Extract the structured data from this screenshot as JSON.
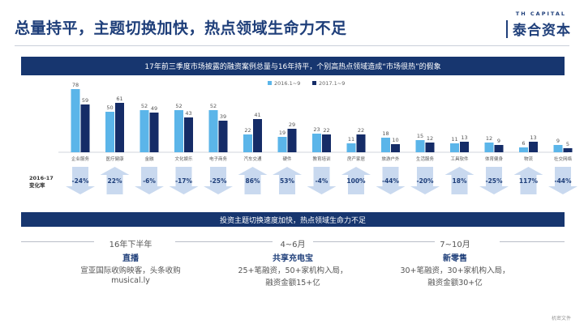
{
  "header": {
    "title": "总量持平，主题切换加快，热点领域生命力不足",
    "logo_small": "TH CAPITAL",
    "logo_main": "泰合资本"
  },
  "banner_top": "17年前三季度市场披露的融资案例总量与16年持平，个别高热点领域造成“市场很热”的假象",
  "banner_mid": "投资主题切换速度加快，热点领域生命力不足",
  "chart_data": {
    "type": "bar",
    "categories": [
      "企业服务",
      "医疗健康",
      "金融",
      "文化娱乐",
      "电子商务",
      "汽车交通",
      "硬件",
      "教育培训",
      "房产家居",
      "旅游户外",
      "生活服务",
      "工具软件",
      "体育健身",
      "物流",
      "社交网络"
    ],
    "series": [
      {
        "name": "2016.1~9",
        "values": [
          78,
          50,
          52,
          52,
          52,
          22,
          19,
          23,
          11,
          18,
          15,
          11,
          12,
          6,
          9
        ]
      },
      {
        "name": "2017.1~9",
        "values": [
          59,
          61,
          49,
          43,
          39,
          41,
          29,
          22,
          22,
          10,
          12,
          13,
          9,
          13,
          5
        ]
      }
    ],
    "change_label": "2016-17 变化率",
    "change_rates": [
      "-24%",
      "22%",
      "-6%",
      "-17%",
      "-25%",
      "86%",
      "53%",
      "-4%",
      "100%",
      "-44%",
      "-20%",
      "18%",
      "-25%",
      "117%",
      "-44%"
    ],
    "ylim": [
      0,
      90
    ],
    "legend_position": "top-right",
    "grid": false,
    "colors": {
      "series_2016": "#5bb5e9",
      "series_2017": "#152c67",
      "arrow": "#c9d9ef",
      "rate_text": "#1f3f7a"
    }
  },
  "timeline": [
    {
      "period": "16年下半年",
      "title": "直播",
      "lines": [
        "宣亚国际收购映客，头条收购",
        "musical.ly"
      ]
    },
    {
      "period": "4~6月",
      "title": "共享充电宝",
      "lines": [
        "25+笔融资，50+家机构入局，",
        "融资金额15+亿"
      ]
    },
    {
      "period": "7~10月",
      "title": "新零售",
      "lines": [
        "30+笔融资，30+家机构入局，",
        "融资金额30+亿"
      ]
    }
  ],
  "footer": "机密文件"
}
